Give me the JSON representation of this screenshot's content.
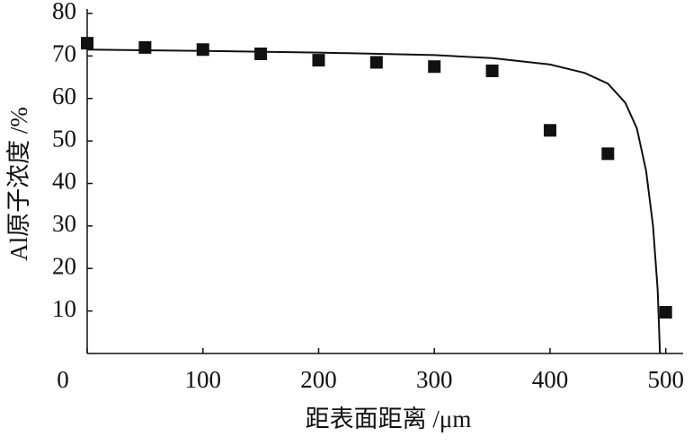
{
  "chart_data": {
    "type": "scatter",
    "x_label": "距表面距离 /μm",
    "y_label": "Al原子浓度 /%",
    "xlim": [
      0,
      515
    ],
    "xticks": [
      0,
      100,
      200,
      300,
      400,
      500
    ],
    "ylim": [
      0,
      80
    ],
    "yticks": [
      10,
      20,
      30,
      40,
      50,
      60,
      70,
      80
    ],
    "grid": false,
    "series": [
      {
        "mode": "markers",
        "color": "#111111",
        "x": [
          0,
          50,
          100,
          150,
          200,
          250,
          300,
          350,
          400,
          450,
          500
        ],
        "values": [
          73,
          72,
          71.5,
          70.5,
          69,
          68.5,
          67.5,
          66.5,
          52.5,
          47,
          9.7
        ]
      },
      {
        "mode": "line",
        "color": "#111111",
        "x": [
          0,
          100,
          200,
          300,
          350,
          400,
          430,
          450,
          465,
          475,
          483,
          489,
          493,
          495
        ],
        "values": [
          71.5,
          71.2,
          70.8,
          70.2,
          69.5,
          68,
          66,
          63.5,
          59,
          53,
          43,
          30,
          15,
          0
        ]
      }
    ]
  }
}
